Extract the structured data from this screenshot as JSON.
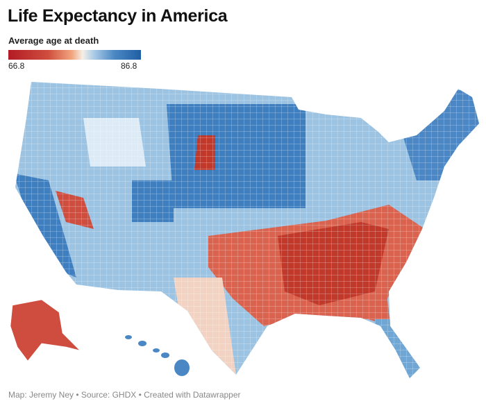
{
  "title": "Life Expectancy in America",
  "legend": {
    "title": "Average age at death",
    "min": "66.8",
    "max": "86.8",
    "colors": {
      "low": "#b31b25",
      "mid": "#f5efe6",
      "high": "#1f5fa3"
    }
  },
  "map": {
    "type": "county choropleth",
    "region": "United States",
    "low_regions": [
      "Southeast",
      "Appalachia",
      "Mississippi Delta",
      "Nevada",
      "Alaska"
    ],
    "high_regions": [
      "Upper Midwest",
      "Northeast",
      "Colorado",
      "California coast",
      "Hawaii"
    ]
  },
  "footer": "Map: Jeremy Ney • Source: GHDX • Created with Datawrapper"
}
